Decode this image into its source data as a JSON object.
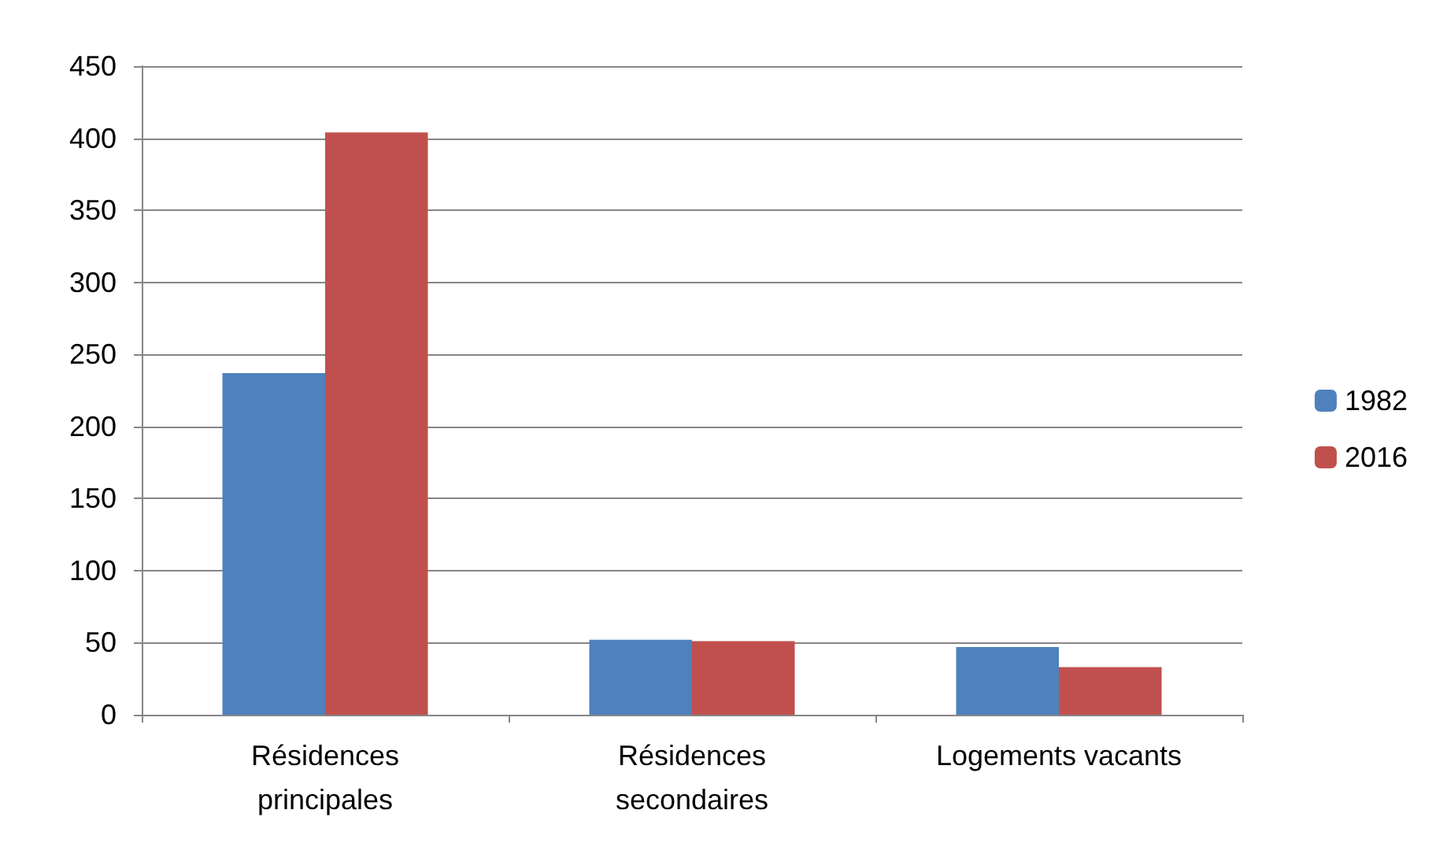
{
  "chart_data": {
    "type": "bar",
    "categories": [
      "Résidences\nprincipales",
      "Résidences\nsecondaires",
      "Logements vacants"
    ],
    "series": [
      {
        "name": "1982",
        "color": "#4f81bd",
        "values": [
          237,
          52,
          47
        ]
      },
      {
        "name": "2016",
        "color": "#c0504d",
        "values": [
          404,
          51,
          33
        ]
      }
    ],
    "ylim": [
      0,
      450
    ],
    "yticks": [
      0,
      50,
      100,
      150,
      200,
      250,
      300,
      350,
      400,
      450
    ],
    "grid": "y",
    "legend": "right"
  }
}
